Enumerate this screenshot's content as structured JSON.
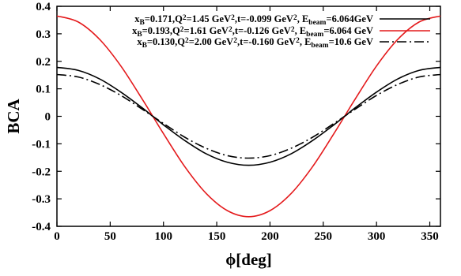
{
  "chart_data": {
    "type": "line",
    "xlabel": "ϕ[deg]",
    "ylabel": "BCA",
    "xlim": [
      0,
      360
    ],
    "ylim": [
      -0.4,
      0.4
    ],
    "x_ticks": [
      0,
      50,
      100,
      150,
      200,
      250,
      300,
      350
    ],
    "x_tick_labels": [
      "0",
      "50",
      "100",
      "150",
      "200",
      "250",
      "300",
      "350"
    ],
    "y_ticks": [
      -0.4,
      -0.3,
      -0.2,
      -0.1,
      0,
      0.1,
      0.2,
      0.3,
      0.4
    ],
    "y_tick_labels": [
      "-0.4",
      "-0.3",
      "-0.2",
      "-0.1",
      "0",
      "0.1",
      "0.2",
      "0.3",
      "0.4"
    ],
    "grid": false,
    "legend_position": "top-right",
    "x": [
      0,
      20,
      40,
      60,
      80,
      90,
      100,
      120,
      140,
      160,
      180,
      200,
      220,
      240,
      260,
      270,
      280,
      300,
      320,
      340,
      360
    ],
    "series": [
      {
        "name": "x_B=0.171,Q^2=1.45 GeV^2,t=-0.099 GeV^2, E_beam=6.064GeV",
        "legend_parts": [
          "x",
          "B",
          "=0.171,Q",
          "2",
          "=1.45 GeV",
          "2",
          ",t=-0.099 GeV",
          "2",
          ", E",
          "beam",
          "=6.064GeV"
        ],
        "color": "#000000",
        "dash": "solid",
        "values": [
          0.178,
          0.167,
          0.136,
          0.088,
          0.031,
          0.0,
          -0.031,
          -0.088,
          -0.136,
          -0.167,
          -0.178,
          -0.167,
          -0.136,
          -0.088,
          -0.031,
          0.0,
          0.031,
          0.088,
          0.136,
          0.167,
          0.178
        ]
      },
      {
        "name": "x_B=0.193,Q^2=1.61 GeV^2,t=-0.126 GeV^2, E_beam=6.064 GeV",
        "legend_parts": [
          "x",
          "B",
          "=0.193,Q",
          "2",
          "=1.61 GeV",
          "2",
          ",t=-0.126 GeV",
          "2",
          ", E",
          "beam",
          "=6.064 GeV"
        ],
        "color": "#e41a1c",
        "dash": "solid",
        "values": [
          0.365,
          0.343,
          0.28,
          0.183,
          0.063,
          0.0,
          -0.063,
          -0.183,
          -0.28,
          -0.343,
          -0.365,
          -0.343,
          -0.28,
          -0.183,
          -0.063,
          0.0,
          0.063,
          0.183,
          0.28,
          0.343,
          0.365
        ]
      },
      {
        "name": "x_B=0.130,Q^2=2.00 GeV^2,t=-0.160 GeV^2, E_beam=10.6 GeV",
        "legend_parts": [
          "x",
          "B",
          "=0.130,Q",
          "2",
          "=2.00 GeV",
          "2",
          ",t=-0.160 GeV",
          "2",
          ", E",
          "beam",
          "=10.6 GeV"
        ],
        "color": "#000000",
        "dash": "dashdot",
        "values": [
          0.152,
          0.143,
          0.116,
          0.076,
          0.026,
          0.0,
          -0.026,
          -0.076,
          -0.116,
          -0.143,
          -0.152,
          -0.143,
          -0.116,
          -0.076,
          -0.026,
          0.0,
          0.026,
          0.076,
          0.116,
          0.143,
          0.152
        ]
      }
    ]
  }
}
